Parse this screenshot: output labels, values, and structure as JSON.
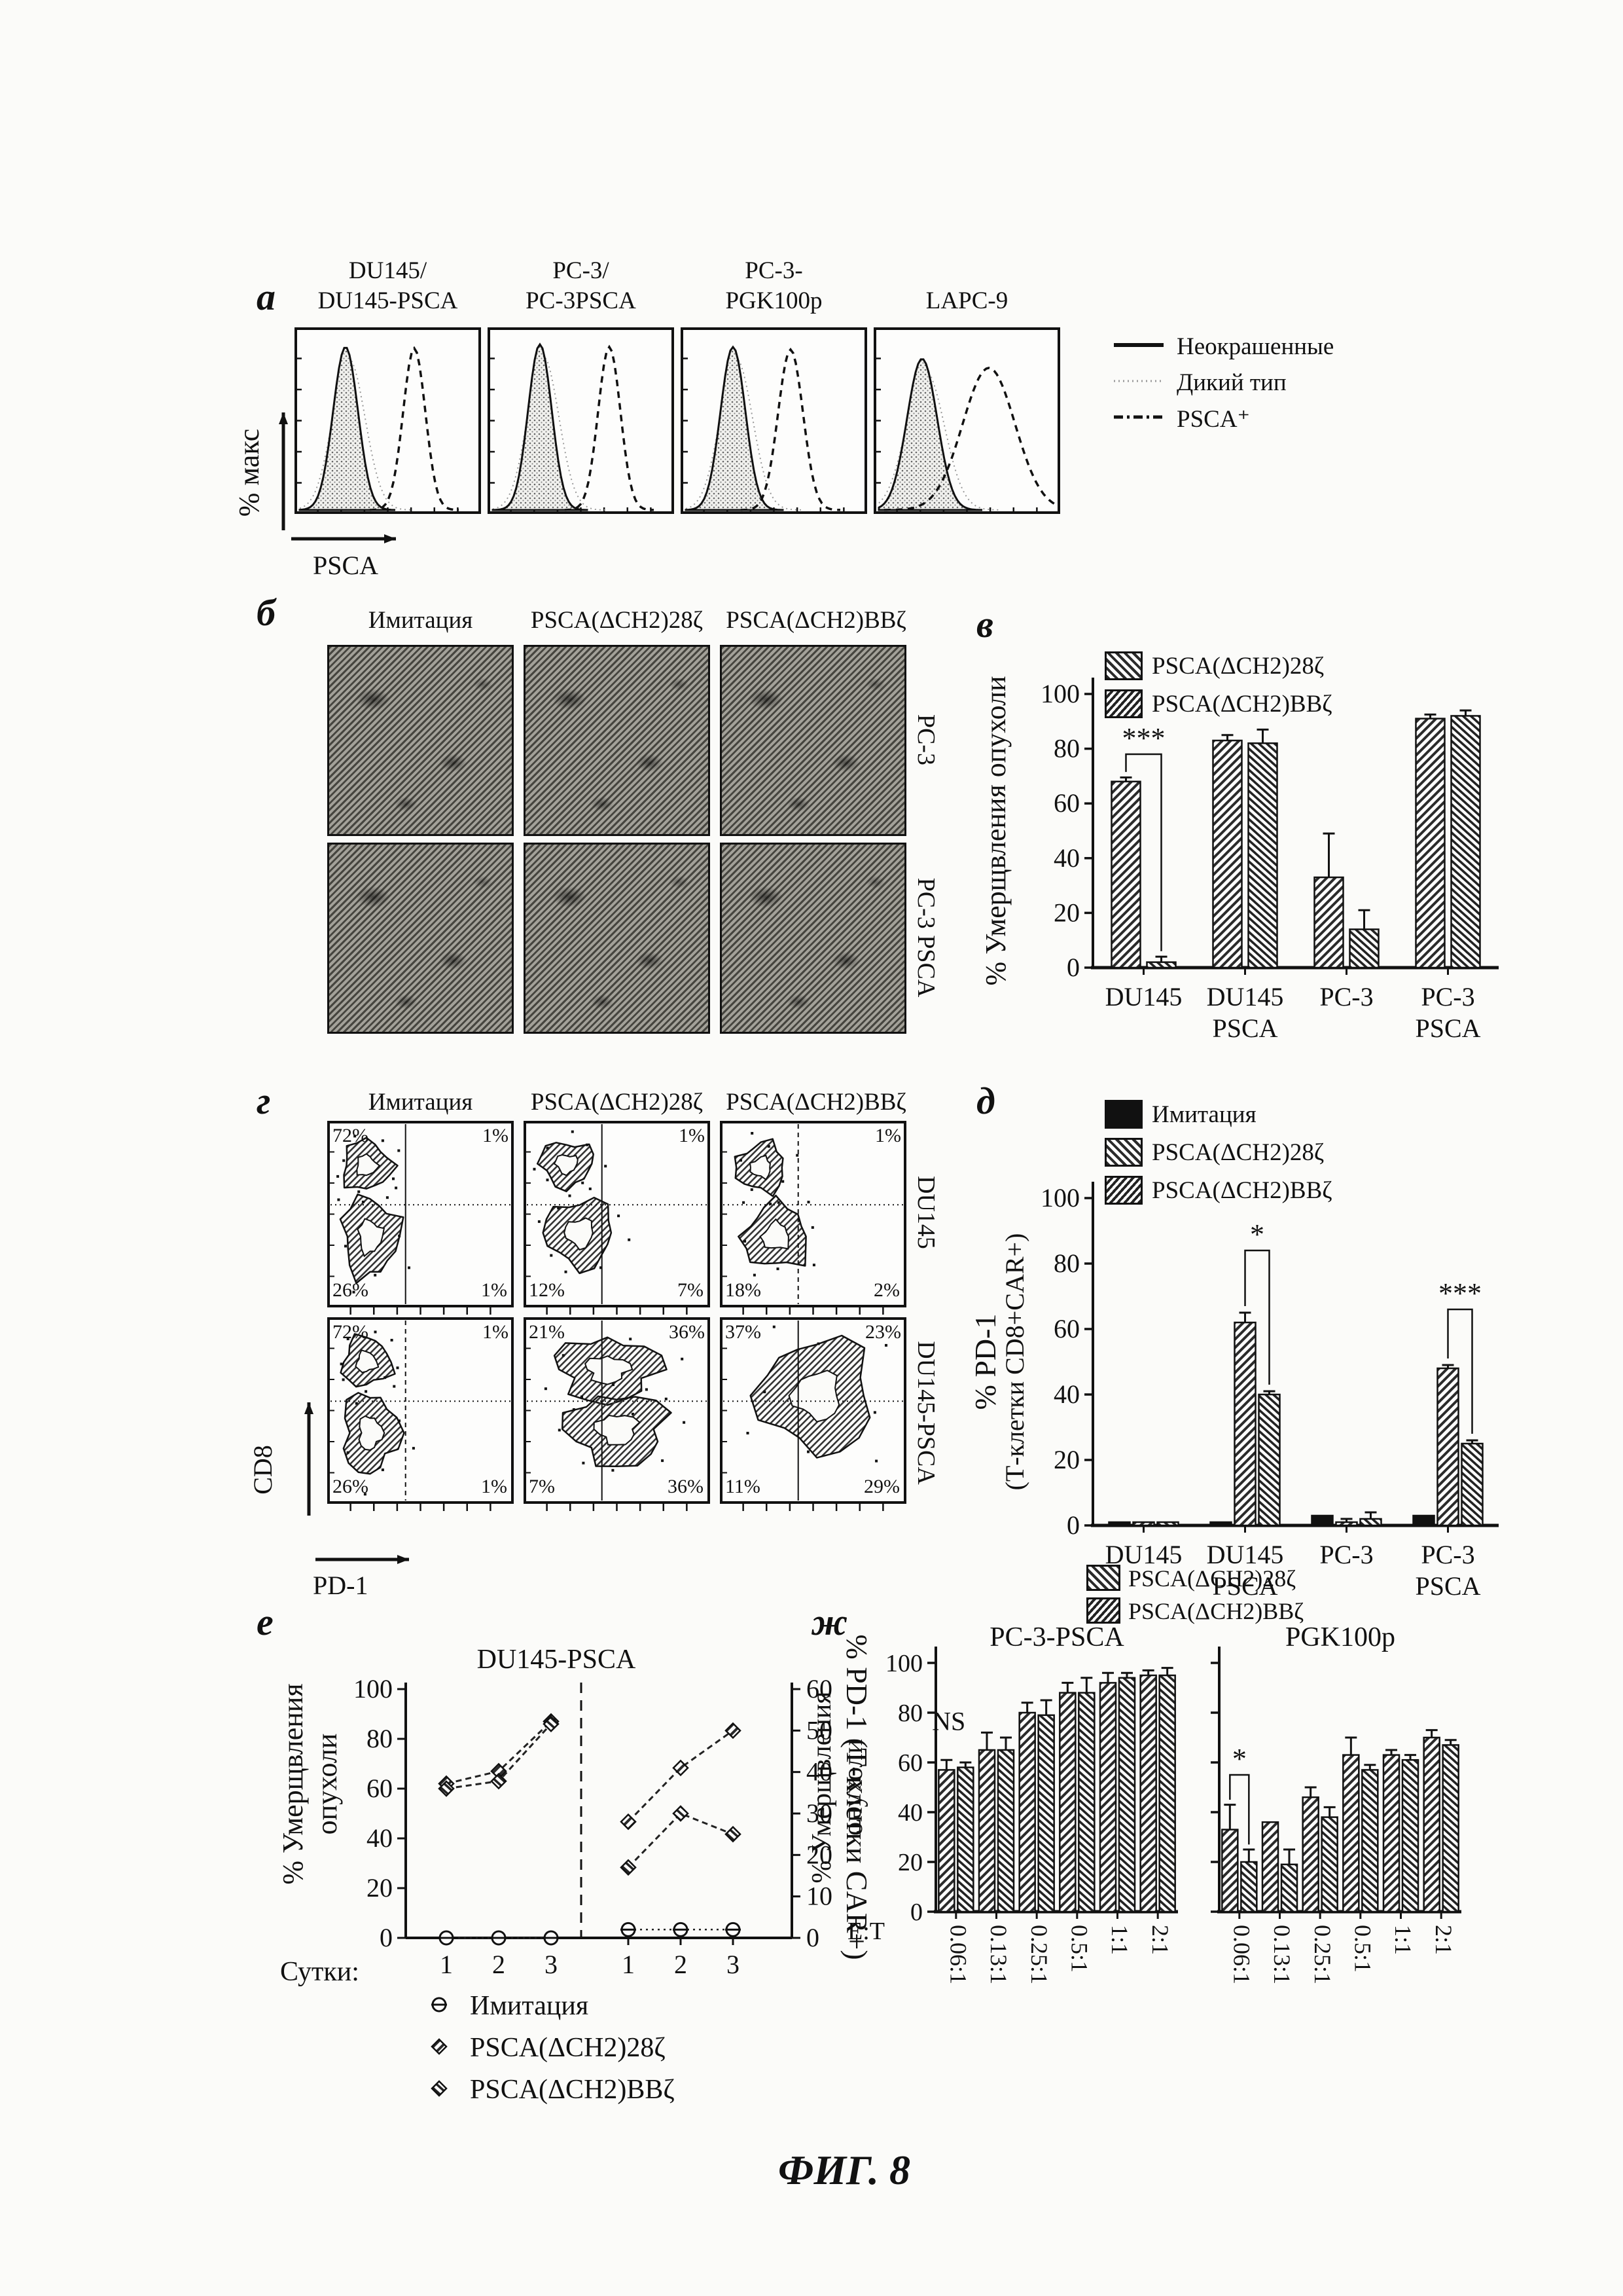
{
  "figure_label": "ФИГ. 8",
  "colors": {
    "ink": "#111111",
    "paper": "#fbfbf9"
  },
  "panel_a": {
    "letter": "а",
    "ylabel": "% макс",
    "xlabel": "PSCA",
    "plots": [
      {
        "title1": "DU145/",
        "title2": "DU145-PSCA"
      },
      {
        "title1": "PC-3/",
        "title2": "PC-3PSCA"
      },
      {
        "title1": "PC-3-",
        "title2": "PGK100p"
      },
      {
        "title1": "",
        "title2": "LAPC-9"
      }
    ],
    "legend": [
      {
        "label": "Неокрашенные",
        "line": "solid"
      },
      {
        "label": "Дикий тип",
        "line": "dotted"
      },
      {
        "label": "PSCA⁺",
        "line": "dashdot"
      }
    ]
  },
  "panel_b": {
    "letter": "б",
    "col_headers": [
      "Имитация",
      "PSCA(ΔCH2)28ζ",
      "PSCA(ΔCH2)BBζ"
    ],
    "row_labels": [
      "PC-3",
      "PC-3 PSCA"
    ]
  },
  "panel_v": {
    "letter": "в",
    "legend": [
      "PSCA(ΔCH2)28ζ",
      "PSCA(ΔCH2)BBζ"
    ]
  },
  "panel_g": {
    "letter": "г",
    "col_headers": [
      "Имитация",
      "PSCA(ΔCH2)28ζ",
      "PSCA(ΔCH2)BBζ"
    ],
    "row_labels": [
      "DU145",
      "DU145-PSCA"
    ],
    "xlabel": "PD-1",
    "ylabel": "CD8",
    "plots": [
      {
        "tl": "72%",
        "tr": "1%",
        "bl": "26%",
        "br": "1%"
      },
      {
        "tl": "",
        "tr": "1%",
        "bl": "12%",
        "br": "7%"
      },
      {
        "tl": "",
        "tr": "1%",
        "bl": "18%",
        "br": "2%"
      },
      {
        "tl": "72%",
        "tr": "1%",
        "bl": "26%",
        "br": "1%"
      },
      {
        "tl": "21%",
        "tr": "36%",
        "bl": "7%",
        "br": "36%"
      },
      {
        "tl": "37%",
        "tr": "23%",
        "bl": "11%",
        "br": "29%"
      }
    ]
  },
  "panel_d": {
    "letter": "д",
    "legend": [
      "Имитация",
      "PSCA(ΔCH2)28ζ",
      "PSCA(ΔCH2)BBζ"
    ],
    "ylabel_line1": "% PD-1",
    "ylabel_line2": "(Т-клетки CD8+CAR+)"
  },
  "panel_e": {
    "letter": "е",
    "xlabel": "Сутки:",
    "left_ylabel_line1": "% Умерщвления",
    "left_ylabel_line2": "опухоли",
    "right_ylabel": "% PD-1 (Т-клетки CAR+)",
    "legend": [
      "Имитация",
      "PSCA(ΔCH2)28ζ",
      "PSCA(ΔCH2)BBζ"
    ]
  },
  "panel_zh": {
    "letter": "ж",
    "legend": [
      "PSCA(ΔCH2)28ζ",
      "PSCA(ΔCH2)BBζ"
    ],
    "ylabel_line1": "% Умерщвления",
    "ylabel_line2": "опухоли",
    "xlabel": "E:T"
  },
  "chart_data": [
    {
      "id": "v",
      "type": "bar",
      "title": "",
      "ylabel": "% Умерщвления опухоли",
      "ylim": [
        0,
        100
      ],
      "yticks": [
        0,
        20,
        40,
        60,
        80,
        100
      ],
      "categories": [
        "DU145",
        "DU145 PSCA",
        "PC-3",
        "PC-3 PSCA"
      ],
      "series": [
        {
          "name": "PSCA(ΔCH2)28ζ",
          "values": [
            68,
            83,
            33,
            91
          ],
          "errors": [
            1.5,
            2,
            16,
            1.5
          ]
        },
        {
          "name": "PSCA(ΔCH2)BBζ",
          "values": [
            2,
            82,
            14,
            92
          ],
          "errors": [
            2,
            5,
            7,
            2
          ]
        }
      ],
      "annotations": [
        {
          "type": "bracket",
          "label": "***",
          "group": 0,
          "s1": 0,
          "s2": 1,
          "y": 78
        }
      ]
    },
    {
      "id": "d",
      "type": "bar",
      "title": "",
      "ylabel": "% PD-1 (Т-клетки CD8+CAR+)",
      "ylim": [
        0,
        100
      ],
      "yticks": [
        0,
        20,
        40,
        60,
        80,
        100
      ],
      "categories": [
        "DU145",
        "DU145 PSCA",
        "PC-3",
        "PC-3 PSCA"
      ],
      "series": [
        {
          "name": "Имитация",
          "values": [
            1,
            1,
            3,
            3
          ],
          "errors": [
            0,
            0,
            0,
            0
          ]
        },
        {
          "name": "PSCA(ΔCH2)28ζ",
          "values": [
            1,
            62,
            1,
            48
          ],
          "errors": [
            0,
            3,
            1,
            1
          ]
        },
        {
          "name": "PSCA(ΔCH2)BBζ",
          "values": [
            1,
            40,
            2,
            25
          ],
          "errors": [
            0,
            1,
            2,
            1
          ]
        }
      ],
      "annotations": [
        {
          "type": "bracket",
          "label": "*",
          "group": 1,
          "s1": 1,
          "s2": 2,
          "y": 84
        },
        {
          "type": "bracket",
          "label": "***",
          "group": 3,
          "s1": 1,
          "s2": 2,
          "y": 66
        }
      ]
    },
    {
      "id": "e",
      "type": "line",
      "title": "DU145-PSCA",
      "x": [
        1,
        2,
        3
      ],
      "xlabel": "Сутки:",
      "left_ylabel": "% Умерщвления опухоли",
      "right_ylabel": "% PD-1 (Т-клетки CAR+)",
      "left_ylim": [
        0,
        100
      ],
      "left_yticks": [
        0,
        20,
        40,
        60,
        80,
        100
      ],
      "right_ylim": [
        0,
        60
      ],
      "right_yticks": [
        0,
        10,
        20,
        30,
        40,
        50,
        60
      ],
      "left_series": [
        {
          "name": "Имитация",
          "values": [
            0,
            0,
            0
          ]
        },
        {
          "name": "PSCA(ΔCH2)28ζ",
          "values": [
            62,
            67,
            87
          ]
        },
        {
          "name": "PSCA(ΔCH2)BBζ",
          "values": [
            60,
            63,
            86
          ]
        }
      ],
      "right_series": [
        {
          "name": "Имитация",
          "values": [
            2,
            2,
            2
          ]
        },
        {
          "name": "PSCA(ΔCH2)28ζ",
          "values": [
            28,
            41,
            50
          ]
        },
        {
          "name": "PSCA(ΔCH2)BBζ",
          "values": [
            17,
            30,
            25
          ]
        }
      ]
    },
    {
      "id": "zh1",
      "type": "bar",
      "title": "PC-3-PSCA",
      "ylabel": "% Умерщвления опухоли",
      "xlabel": "E:T",
      "ylim": [
        0,
        100
      ],
      "yticks": [
        0,
        20,
        40,
        60,
        80,
        100
      ],
      "categories": [
        "0.06:1",
        "0.13:1",
        "0.25:1",
        "0.5:1",
        "1:1",
        "2:1"
      ],
      "series": [
        {
          "name": "PSCA(ΔCH2)28ζ",
          "values": [
            57,
            65,
            80,
            88,
            92,
            95
          ],
          "errors": [
            4,
            7,
            4,
            4,
            4,
            2
          ]
        },
        {
          "name": "PSCA(ΔCH2)BBζ",
          "values": [
            58,
            65,
            79,
            88,
            94,
            95
          ],
          "errors": [
            2,
            5,
            6,
            6,
            2,
            3
          ]
        }
      ],
      "annotations": [
        {
          "type": "text",
          "label": "NS",
          "group": 0,
          "y": 73
        }
      ]
    },
    {
      "id": "zh2",
      "type": "bar",
      "title": "PGK100p",
      "ylabel": "",
      "xlabel": "E:T",
      "ylim": [
        0,
        100
      ],
      "yticks": [
        0,
        20,
        40,
        60,
        80,
        100
      ],
      "categories": [
        "0.06:1",
        "0.13:1",
        "0.25:1",
        "0.5:1",
        "1:1",
        "2:1"
      ],
      "series": [
        {
          "name": "PSCA(ΔCH2)28ζ",
          "values": [
            33,
            36,
            46,
            63,
            63,
            70
          ],
          "errors": [
            10,
            0,
            4,
            7,
            2,
            3
          ]
        },
        {
          "name": "PSCA(ΔCH2)BBζ",
          "values": [
            20,
            19,
            38,
            57,
            61,
            67
          ],
          "errors": [
            5,
            6,
            4,
            2,
            2,
            2
          ]
        }
      ],
      "annotations": [
        {
          "type": "bracket",
          "label": "*",
          "group": 0,
          "s1": 0,
          "s2": 1,
          "y": 55
        }
      ]
    }
  ]
}
